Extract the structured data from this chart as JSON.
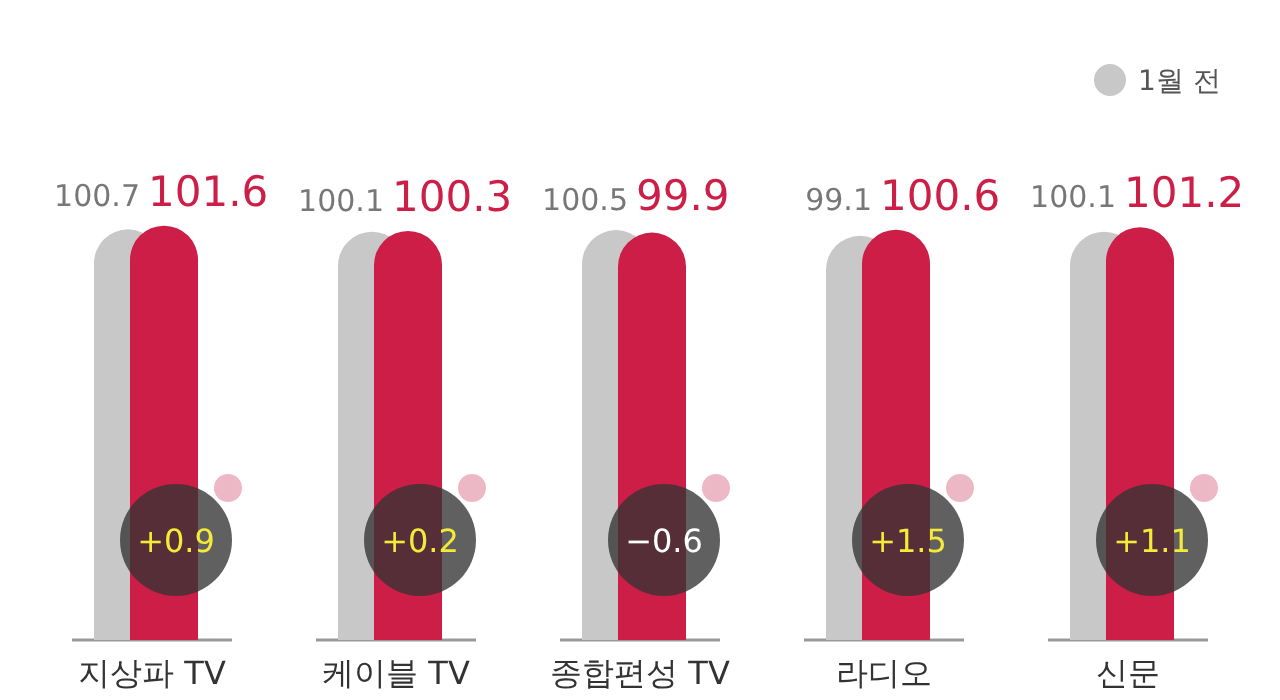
{
  "chart_data": {
    "type": "bar",
    "categories": [
      "지상파 TV",
      "케이블 TV",
      "종합편성 TV",
      "라디오",
      "신문"
    ],
    "series": [
      {
        "name": "1월 전",
        "color": "#c8c8c8",
        "values": [
          100.7,
          100.1,
          100.5,
          99.1,
          100.1
        ]
      },
      {
        "color": "#cc1e47",
        "values": [
          101.6,
          100.3,
          99.9,
          100.6,
          101.2
        ]
      }
    ],
    "ylim": [
      0,
      102
    ],
    "data_labels": true,
    "legend": "top right",
    "annotations": [
      {
        "text": "+0.9",
        "x": "지상파 TV"
      },
      {
        "text": "+0.2",
        "x": "케이블 TV"
      },
      {
        "text": "−0.6",
        "x": "종합편성 TV"
      },
      {
        "text": "+1.5",
        "x": "라디오"
      },
      {
        "text": "+1.1",
        "x": "신문"
      }
    ]
  }
}
